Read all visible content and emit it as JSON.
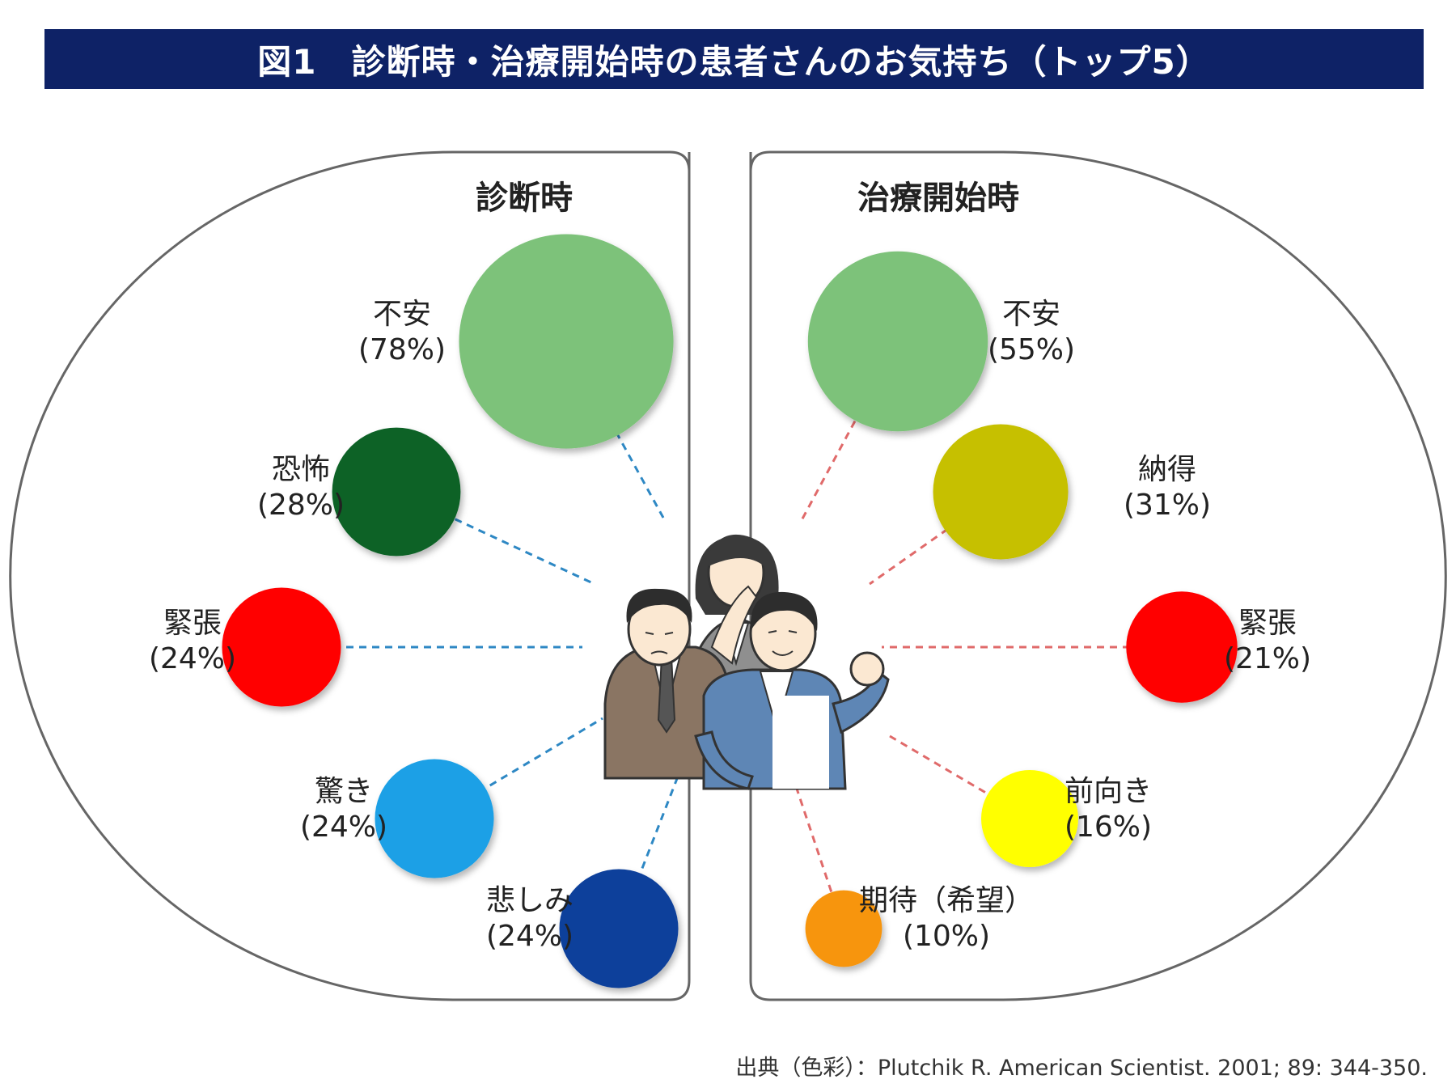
{
  "title": "図1　診断時・治療開始時の患者さんのお気持ち（トップ5）",
  "source": "出典（色彩）：Plutchik R. American Scientist. 2001; 89: 344-350.",
  "chart_data": [
    {
      "type": "bubble",
      "title": "診断時",
      "unit": "%",
      "points": [
        {
          "label": "不安",
          "value": 78,
          "value_text": "(78%)",
          "color": "#7dc27a"
        },
        {
          "label": "恐怖",
          "value": 28,
          "value_text": "(28%)",
          "color": "#0b6227"
        },
        {
          "label": "緊張",
          "value": 24,
          "value_text": "(24%)",
          "color": "#ff0000"
        },
        {
          "label": "驚き",
          "value": 24,
          "value_text": "(24%)",
          "color": "#1aa0e6"
        },
        {
          "label": "悲しみ",
          "value": 24,
          "value_text": "(24%)",
          "color": "#0b3f9b"
        }
      ],
      "connector_color": "#2e88c4"
    },
    {
      "type": "bubble",
      "title": "治療開始時",
      "unit": "%",
      "points": [
        {
          "label": "不安",
          "value": 55,
          "value_text": "(55%)",
          "color": "#7dc27a"
        },
        {
          "label": "納得",
          "value": 31,
          "value_text": "(31%)",
          "color": "#c6c000"
        },
        {
          "label": "緊張",
          "value": 21,
          "value_text": "(21%)",
          "color": "#ff0000"
        },
        {
          "label": "前向き",
          "value": 16,
          "value_text": "(16%)",
          "color": "#ffff00"
        },
        {
          "label": "期待（希望）",
          "value": 10,
          "value_text": "(10%)",
          "color": "#f7950f"
        }
      ],
      "connector_color": "#e06a6a"
    }
  ]
}
